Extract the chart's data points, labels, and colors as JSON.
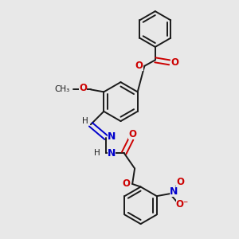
{
  "bg_color": "#e8e8e8",
  "bond_color": "#1a1a1a",
  "oxygen_color": "#cc0000",
  "nitrogen_color": "#0000cc",
  "carbon_color": "#1a1a1a",
  "figsize": [
    3.0,
    3.0
  ],
  "dpi": 100,
  "xlim": [
    0,
    10
  ],
  "ylim": [
    0,
    10
  ]
}
